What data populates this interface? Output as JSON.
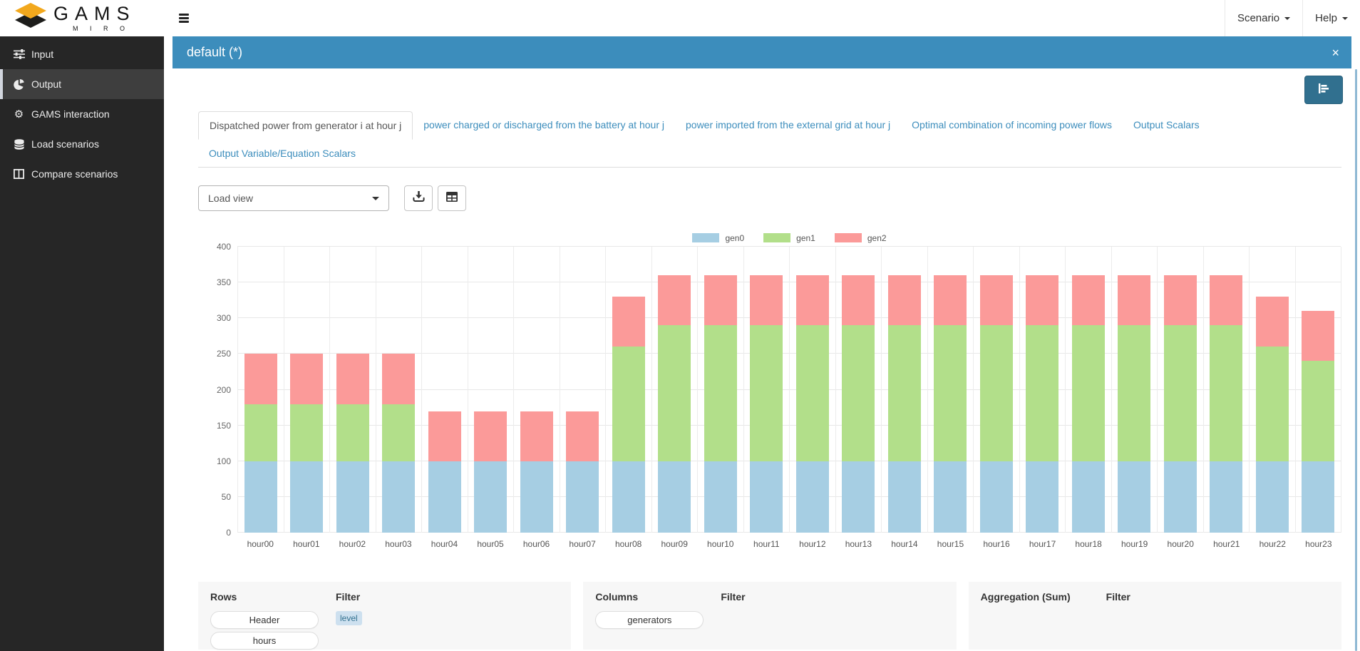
{
  "topbar": {
    "brand": {
      "title": "GAMS",
      "subtitle": "M I R O"
    },
    "menus": [
      {
        "label": "Scenario"
      },
      {
        "label": "Help"
      }
    ]
  },
  "sidebar": {
    "items": [
      {
        "label": "Input",
        "icon": "sliders-icon",
        "active": false
      },
      {
        "label": "Output",
        "icon": "pie-chart-icon",
        "active": true
      },
      {
        "label": "GAMS interaction",
        "icon": "gear-icon",
        "active": false
      },
      {
        "label": "Load scenarios",
        "icon": "database-icon",
        "active": false
      },
      {
        "label": "Compare scenarios",
        "icon": "columns-icon",
        "active": false
      }
    ]
  },
  "panel": {
    "title": "default (*)",
    "close_icon": "×"
  },
  "tabs": {
    "rows": [
      [
        {
          "label": "Dispatched power from generator i at hour j",
          "active": true
        },
        {
          "label": "power charged or discharged from the battery at hour j",
          "active": false
        },
        {
          "label": "power imported from the external grid at hour j",
          "active": false
        },
        {
          "label": "Optimal combination of incoming power flows",
          "active": false
        },
        {
          "label": "Output Scalars",
          "active": false
        }
      ],
      [
        {
          "label": "Output Variable/Equation Scalars",
          "active": false
        }
      ]
    ]
  },
  "controls": {
    "load_view_label": "Load view",
    "buttons": [
      "download-icon",
      "table-icon"
    ]
  },
  "chart_data": {
    "type": "bar",
    "stacked": true,
    "title": "",
    "xlabel": "",
    "ylabel": "",
    "categories": [
      "hour00",
      "hour01",
      "hour02",
      "hour03",
      "hour04",
      "hour05",
      "hour06",
      "hour07",
      "hour08",
      "hour09",
      "hour10",
      "hour11",
      "hour12",
      "hour13",
      "hour14",
      "hour15",
      "hour16",
      "hour17",
      "hour18",
      "hour19",
      "hour20",
      "hour21",
      "hour22",
      "hour23"
    ],
    "series": [
      {
        "name": "gen0",
        "color": "#a6cee3",
        "values": [
          100,
          100,
          100,
          100,
          100,
          100,
          100,
          100,
          100,
          100,
          100,
          100,
          100,
          100,
          100,
          100,
          100,
          100,
          100,
          100,
          100,
          100,
          100,
          100
        ]
      },
      {
        "name": "gen1",
        "color": "#b2df8a",
        "values": [
          80,
          80,
          80,
          80,
          0,
          0,
          0,
          0,
          160,
          190,
          190,
          190,
          190,
          190,
          190,
          190,
          190,
          190,
          190,
          190,
          190,
          190,
          160,
          140
        ]
      },
      {
        "name": "gen2",
        "color": "#fb9a99",
        "values": [
          70,
          70,
          70,
          70,
          70,
          70,
          70,
          70,
          70,
          70,
          70,
          70,
          70,
          70,
          70,
          70,
          70,
          70,
          70,
          70,
          70,
          70,
          70,
          70
        ]
      }
    ],
    "ylim": [
      0,
      400
    ],
    "ytick_step": 50,
    "grid": true,
    "legend_position": "top"
  },
  "pivot": {
    "groups": [
      {
        "heading": "Rows",
        "pills": [
          "Header",
          "hours"
        ],
        "filter": {
          "heading": "Filter",
          "badges": [
            "level"
          ]
        }
      },
      {
        "heading": "Columns",
        "pills": [
          "generators"
        ],
        "filter": {
          "heading": "Filter",
          "badges": []
        }
      },
      {
        "heading": "Aggregation (Sum)",
        "pills": [],
        "filter": {
          "heading": "Filter",
          "badges": []
        }
      }
    ]
  },
  "colors": {
    "header_blue": "#3c8dbc",
    "sidebar_bg": "#262626",
    "chart_button_blue": "#31708f",
    "tab_link_blue": "#3c8dbc",
    "badge_bg": "#cde0ef"
  }
}
